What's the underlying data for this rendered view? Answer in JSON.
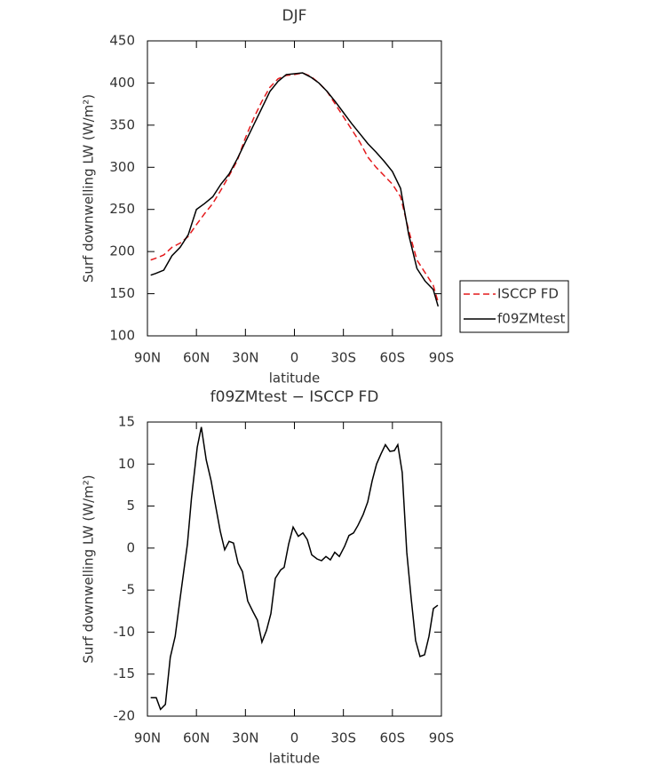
{
  "chart_data": [
    {
      "type": "line",
      "title": "DJF",
      "x_label": "latitude",
      "y_label": "Surf downwelling LW (W/m²)",
      "x": [
        88,
        85,
        80,
        75,
        70,
        65,
        60,
        55,
        50,
        45,
        40,
        35,
        30,
        25,
        20,
        15,
        10,
        5,
        0,
        -5,
        -10,
        -15,
        -20,
        -25,
        -30,
        -35,
        -40,
        -45,
        -50,
        -55,
        -60,
        -65,
        -70,
        -75,
        -80,
        -85,
        -88
      ],
      "series": [
        {
          "name": "ISCCP FD",
          "color": "#e41a1c",
          "dash": true,
          "values": [
            190,
            192,
            196,
            205,
            210,
            218,
            232,
            245,
            257,
            273,
            290,
            308,
            335,
            358,
            378,
            395,
            405,
            409,
            410,
            412,
            408,
            400,
            390,
            375,
            360,
            345,
            330,
            312,
            300,
            290,
            280,
            265,
            225,
            190,
            175,
            160,
            140
          ]
        },
        {
          "name": "f09ZMtest",
          "color": "#000000",
          "dash": false,
          "values": [
            172,
            174,
            178,
            195,
            205,
            220,
            250,
            257,
            265,
            280,
            292,
            310,
            330,
            350,
            370,
            390,
            402,
            410,
            411,
            412,
            407,
            400,
            390,
            378,
            365,
            352,
            340,
            328,
            318,
            307,
            295,
            275,
            220,
            180,
            165,
            155,
            135
          ]
        }
      ],
      "xlim": [
        90,
        -90
      ],
      "xticks": [
        {
          "value": 90,
          "label": "90N"
        },
        {
          "value": 60,
          "label": "60N"
        },
        {
          "value": 30,
          "label": "30N"
        },
        0,
        {
          "value": -30,
          "label": "30S"
        },
        {
          "value": -60,
          "label": "60S"
        },
        {
          "value": -90,
          "label": "90S"
        }
      ],
      "ylim": [
        100,
        450
      ],
      "yticks": [
        100,
        150,
        200,
        250,
        300,
        350,
        400,
        450
      ],
      "legend": "right"
    },
    {
      "type": "line",
      "title": "f09ZMtest − ISCCP FD",
      "x_label": "latitude",
      "y_label": "Surf downwelling LW (W/m²)",
      "x": [
        88,
        84.6,
        82,
        79,
        76,
        73,
        70,
        65.5,
        63,
        59.5,
        57,
        54,
        51,
        48.7,
        45.4,
        42.7,
        40,
        37.3,
        34.5,
        31.8,
        28.6,
        25.3,
        22.6,
        19.9,
        17.1,
        14.4,
        11.7,
        8.4,
        6.3,
        3.5,
        0.8,
        -2.4,
        -5.2,
        -7.9,
        -10.6,
        -13.9,
        -16.6,
        -19.3,
        -22,
        -24.7,
        -27.5,
        -30.7,
        -33.4,
        -36.2,
        -38.9,
        -42.1,
        -44.9,
        -47.6,
        -50.3,
        -53,
        -55.7,
        -58.5,
        -61.2,
        -63.3,
        -66,
        -68.8,
        -71.5,
        -74.2,
        -76.9,
        -79.7,
        -82.4,
        -85.1,
        -87.8
      ],
      "values": [
        -17.8,
        -17.8,
        -19.2,
        -18.6,
        -13,
        -10.5,
        -6,
        0.5,
        6,
        12,
        14.4,
        10.5,
        8,
        5.5,
        2,
        -0.2,
        0.8,
        0.6,
        -1.8,
        -2.8,
        -6.3,
        -7.6,
        -8.6,
        -11.2,
        -9.8,
        -7.8,
        -3.6,
        -2.6,
        -2.3,
        0.5,
        2.5,
        1.4,
        1.8,
        1,
        -0.8,
        -1.3,
        -1.5,
        -1,
        -1.4,
        -0.5,
        -1,
        0.2,
        1.5,
        1.8,
        2.7,
        4,
        5.5,
        8,
        10,
        11.2,
        12.3,
        11.5,
        11.6,
        12.3,
        9,
        -0.5,
        -6,
        -11,
        -12.9,
        -12.7,
        -10.5,
        -7.2,
        -6.8
      ],
      "color": "#000000",
      "xlim": [
        90,
        -90
      ],
      "xticks": [
        {
          "value": 90,
          "label": "90N"
        },
        {
          "value": 60,
          "label": "60N"
        },
        {
          "value": 30,
          "label": "30N"
        },
        0,
        {
          "value": -30,
          "label": "30S"
        },
        {
          "value": -60,
          "label": "60S"
        },
        {
          "value": -90,
          "label": "90S"
        }
      ],
      "ylim": [
        -20,
        15
      ],
      "yticks": [
        -20,
        -15,
        -10,
        -5,
        0,
        5,
        10,
        15
      ]
    }
  ]
}
